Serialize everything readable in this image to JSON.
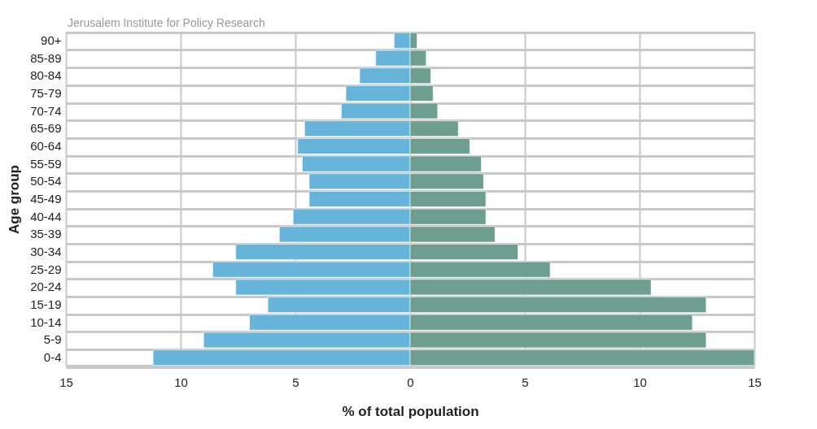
{
  "chart_data": {
    "type": "bar",
    "orientation": "horizontal",
    "ylabel": "Age group",
    "xlabel": "% of total population",
    "annotations": [
      "Jerusalem Institute for Policy Research"
    ],
    "categories": [
      "90+",
      "85-89",
      "80-84",
      "75-79",
      "70-74",
      "65-69",
      "60-64",
      "55-59",
      "50-54",
      "45-49",
      "40-44",
      "35-39",
      "30-34",
      "25-29",
      "20-24",
      "15-19",
      "10-14",
      "5-9",
      "0-4"
    ],
    "series": [
      {
        "color": "#67b4db",
        "values": [
          -0.7,
          -1.5,
          -2.2,
          -2.8,
          -3.0,
          -4.6,
          -4.9,
          -4.7,
          -4.4,
          -4.4,
          -5.1,
          -5.7,
          -7.6,
          -8.6,
          -7.6,
          -6.2,
          -7.0,
          -9.0,
          -11.2
        ]
      },
      {
        "color": "#6e9e90",
        "values": [
          0.3,
          0.7,
          0.9,
          1.0,
          1.2,
          2.1,
          2.6,
          3.1,
          3.2,
          3.3,
          3.3,
          3.7,
          4.7,
          6.1,
          10.5,
          12.9,
          12.3,
          12.9,
          15
        ]
      }
    ],
    "xlim": [
      -15,
      15
    ],
    "xticks": [
      {
        "value": -15,
        "label": "15"
      },
      {
        "value": -10,
        "label": "10"
      },
      {
        "value": -5,
        "label": "5"
      },
      0,
      5,
      10,
      15
    ],
    "stacked": true,
    "grid": true
  }
}
